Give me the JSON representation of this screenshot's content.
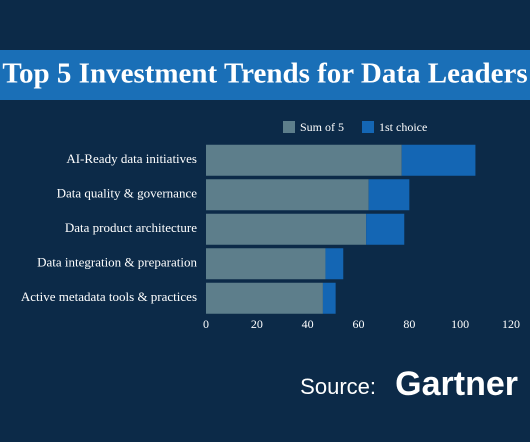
{
  "chart_data": {
    "type": "stacked-bar-horizontal",
    "title": "Top 5 Investment Trends for Data Leaders",
    "categories": [
      "AI-Ready data initiatives",
      "Data quality & governance",
      "Data product architecture",
      "Data integration & preparation",
      "Active metadata tools & practices"
    ],
    "series": [
      {
        "name": "Sum of 5",
        "color": "#5d7e8b",
        "values": [
          77,
          64,
          63,
          47,
          46
        ]
      },
      {
        "name": "1st choice",
        "color": "#1466b4",
        "values": [
          29,
          16,
          15,
          7,
          5
        ]
      }
    ],
    "xlim": [
      0,
      120
    ],
    "xticks": [
      0,
      20,
      40,
      60,
      80,
      100,
      120
    ],
    "legend": "top",
    "grid": false,
    "source_label": "Source:",
    "source_name": "Gartner"
  }
}
